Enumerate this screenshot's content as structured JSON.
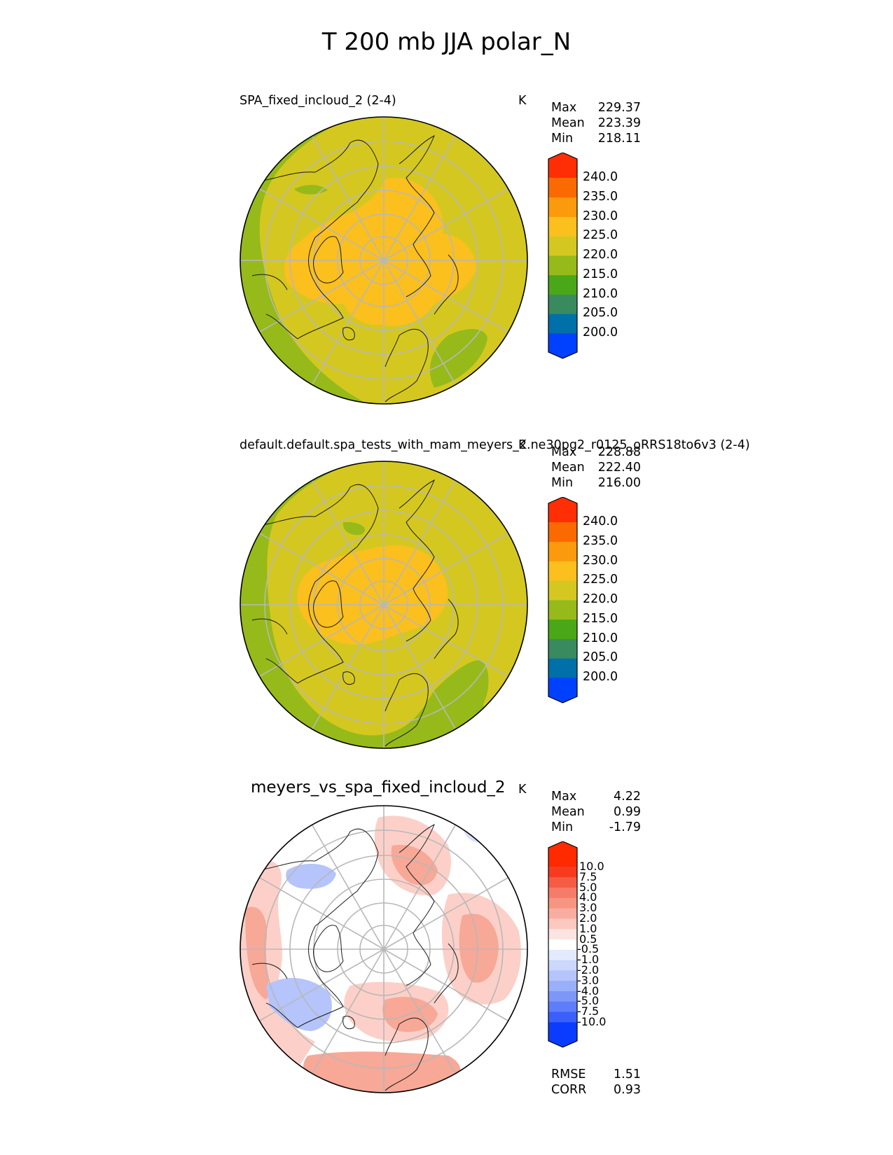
{
  "figure_title": "T 200 mb JJA polar_N",
  "chart_data": [
    {
      "type": "heatmap",
      "projection": "north polar stereographic",
      "title": "SPA_fixed_incloud_2 (2-4)",
      "units": "K",
      "stats": {
        "Max": "229.37",
        "Mean": "223.39",
        "Min": "218.11"
      },
      "colorbar": {
        "levels": [
          "200.0",
          "205.0",
          "210.0",
          "215.0",
          "220.0",
          "225.0",
          "230.0",
          "235.0",
          "240.0"
        ],
        "colors": [
          "#0040ff",
          "#0070a8",
          "#3a8a60",
          "#4aa818",
          "#96ba1a",
          "#d4c820",
          "#fbbf1e",
          "#fb9a0c",
          "#fb6a00",
          "#ff2e04"
        ],
        "extend": "both"
      },
      "field_colors": {
        "cold_band": "#96ba1a",
        "mid": "#d4c820",
        "warm_core": "#fbbf1e"
      }
    },
    {
      "type": "heatmap",
      "projection": "north polar stereographic",
      "title": "default.default.spa_tests_with_mam_meyers_2.ne30pg2_r0125_oRRS18to6v3 (2-4)",
      "units": "K",
      "stats": {
        "Max": "228.88",
        "Mean": "222.40",
        "Min": "216.00"
      },
      "colorbar": {
        "levels": [
          "200.0",
          "205.0",
          "210.0",
          "215.0",
          "220.0",
          "225.0",
          "230.0",
          "235.0",
          "240.0"
        ],
        "colors": [
          "#0040ff",
          "#0070a8",
          "#3a8a60",
          "#4aa818",
          "#96ba1a",
          "#d4c820",
          "#fbbf1e",
          "#fb9a0c",
          "#fb6a00",
          "#ff2e04"
        ],
        "extend": "both"
      },
      "field_colors": {
        "cold_band": "#96ba1a",
        "mid": "#d4c820",
        "warm_core": "#fbbf1e"
      }
    },
    {
      "type": "heatmap",
      "projection": "north polar stereographic",
      "title": "meyers_vs_spa_fixed_incloud_2",
      "units": "K",
      "stats": {
        "Max": "4.22",
        "Mean": "0.99",
        "Min": "-1.79"
      },
      "colorbar": {
        "levels": [
          "-10.0",
          "-7.5",
          "-5.0",
          "-4.0",
          "-3.0",
          "-2.0",
          "-1.0",
          "-0.5",
          "0.5",
          "1.0",
          "2.0",
          "3.0",
          "4.0",
          "5.0",
          "7.5",
          "10.0"
        ],
        "colors": [
          "#0a3cff",
          "#3a5ffc",
          "#5d7dfa",
          "#7d97f9",
          "#9aaffa",
          "#b5c4fb",
          "#ccd7fc",
          "#e4eafd",
          "#ffffff",
          "#fde4e0",
          "#fbc9c0",
          "#f9ada0",
          "#f79583",
          "#f57c68",
          "#f65c44",
          "#f83a1f",
          "#ff2a00"
        ],
        "extend": "both"
      },
      "field_colors": {
        "pos_light": "#fcd0c8",
        "pos_mid": "#f7a897",
        "pos_strong": "#f27a66",
        "neg_light": "#d7defd",
        "neg_mid": "#b5c4fb"
      },
      "footer": {
        "RMSE": "1.51",
        "CORR": "0.93"
      }
    }
  ]
}
